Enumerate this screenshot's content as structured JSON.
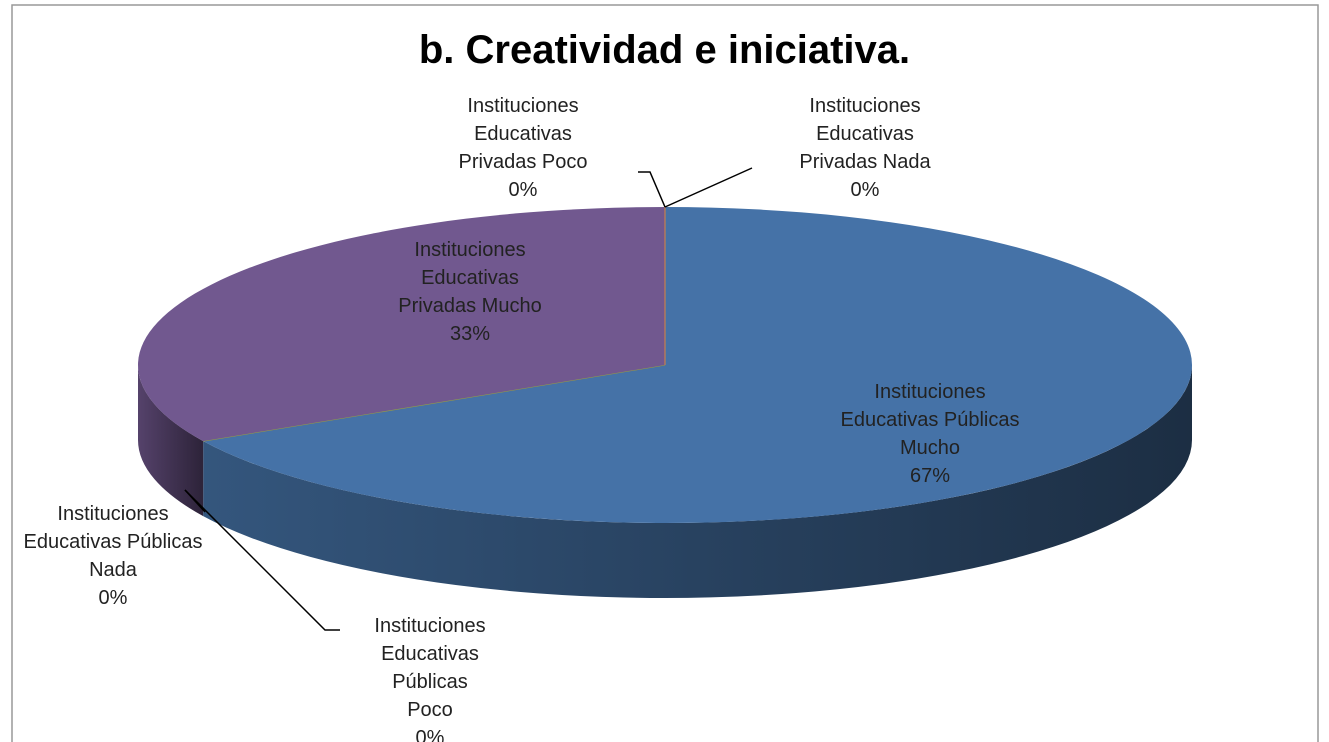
{
  "chart_data": {
    "type": "pie3d",
    "title": "b. Creatividad e iniciativa.",
    "categories": [
      "Instituciones Educativas Públicas Mucho",
      "Instituciones Educativas Públicas Poco",
      "Instituciones Educativas Públicas Nada",
      "Instituciones Educativas Privadas Mucho",
      "Instituciones Educativas Privadas Poco",
      "Instituciones Educativas Privadas Nada"
    ],
    "values": [
      67,
      0,
      0,
      33,
      0,
      0
    ],
    "value_labels": [
      "67%",
      "0%",
      "0%",
      "33%",
      "0%",
      "0%"
    ],
    "colors": [
      "#4572a7",
      "#aa4643",
      "#89a54e",
      "#71588f",
      "#4198af",
      "#db843d"
    ]
  }
}
